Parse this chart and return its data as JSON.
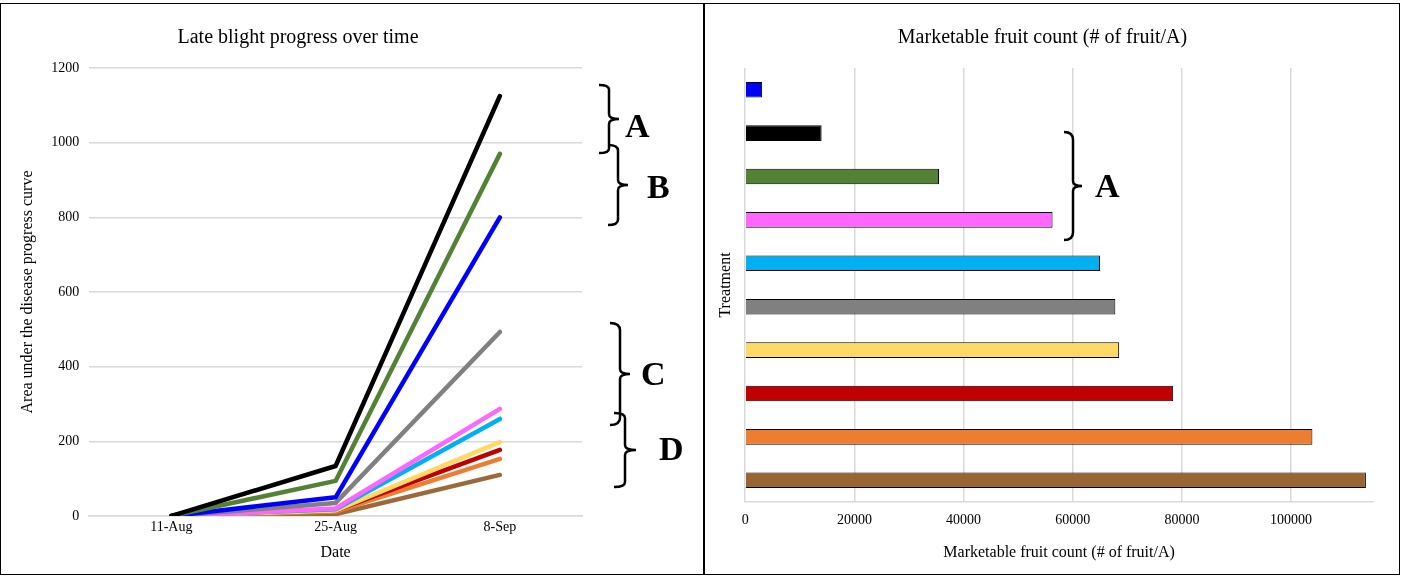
{
  "chart_data": [
    {
      "type": "line",
      "title": "Late blight progress over time",
      "xlabel": "Date",
      "ylabel": "Area under the disease progress curve",
      "categories": [
        "11-Aug",
        "25-Aug",
        "8-Sep"
      ],
      "ylim": [
        0,
        1200
      ],
      "yticks": [
        0,
        200,
        400,
        600,
        800,
        1000,
        1200
      ],
      "grid": "y",
      "line_style": "solid",
      "annotations": [
        "A",
        "B",
        "C",
        "D"
      ],
      "series": [
        {
          "color": "#000000",
          "values": [
            0,
            134,
            1125
          ]
        },
        {
          "color": "#548235",
          "values": [
            0,
            94,
            970
          ]
        },
        {
          "color": "#0000ff",
          "values": [
            0,
            50,
            800
          ]
        },
        {
          "color": "#808080",
          "values": [
            0,
            35,
            493
          ]
        },
        {
          "color": "#ff66ff",
          "values": [
            0,
            20,
            287
          ]
        },
        {
          "color": "#00b0f0",
          "values": [
            0,
            18,
            260
          ]
        },
        {
          "color": "#ffd966",
          "values": [
            0,
            15,
            198
          ]
        },
        {
          "color": "#c00000",
          "values": [
            0,
            15,
            177
          ]
        },
        {
          "color": "#ed7d31",
          "values": [
            0,
            12,
            153
          ]
        },
        {
          "color": "#9c6a3a",
          "values": [
            0,
            5,
            110
          ]
        }
      ]
    },
    {
      "type": "bar",
      "orientation": "horizontal",
      "title": "Marketable fruit count (# of fruit/A)",
      "xlabel": "Marketable fruit count (# of fruit/A)",
      "ylabel": "Treatment",
      "categories": [
        null,
        null,
        null,
        null,
        null,
        null,
        null,
        null,
        null,
        null
      ],
      "values": [
        3100,
        14000,
        35500,
        56300,
        65000,
        67800,
        68500,
        78400,
        103900,
        113700
      ],
      "colors": [
        "#0000ff",
        "#000000",
        "#548235",
        "#ff66ff",
        "#00b0f0",
        "#808080",
        "#ffd966",
        "#c00000",
        "#ed7d31",
        "#996633"
      ],
      "xlim": [
        0,
        115000
      ],
      "xticks": [
        0,
        20000,
        40000,
        60000,
        80000,
        100000
      ],
      "grid": "x",
      "annotations": [
        "A"
      ]
    }
  ]
}
